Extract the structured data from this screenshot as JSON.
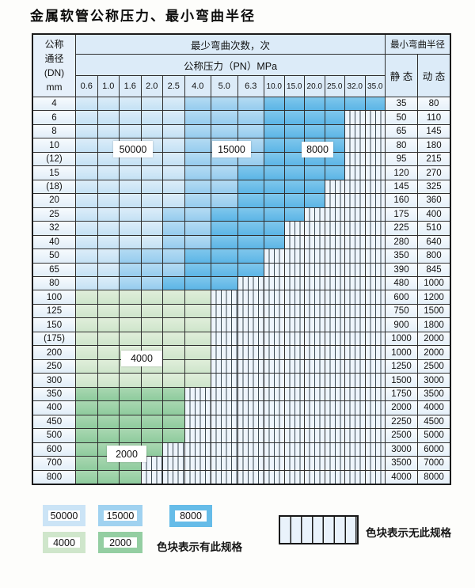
{
  "title": "金属软管公称压力、最小弯曲半径",
  "table": {
    "header": {
      "dn_lines": [
        "公称",
        "通径",
        "(DN)",
        "mm"
      ],
      "cycles_title": "最少弯曲次数，次",
      "pressure_title": "公称压力（PN）MPa",
      "pressure_columns": [
        "0.6",
        "1.0",
        "1.6",
        "2.0",
        "2.5",
        "4.0",
        "5.0",
        "6.3",
        "10.0",
        "15.0",
        "20.0",
        "25.0",
        "32.0",
        "35.0"
      ],
      "radius_title": "最小弯曲半径",
      "static_label": "静 态",
      "dynamic_label": "动 态"
    },
    "cell_codes": {
      "L": "50000次",
      "M": "15000次",
      "D": "8000次",
      "g": "4000次",
      "G": "2000次",
      "n": "无此规格"
    },
    "rows": [
      {
        "dn": "4",
        "cells": "LLLLLMMMDDDDDD",
        "static": "35",
        "dynamic": "80"
      },
      {
        "dn": "6",
        "cells": "LLLLLMMMDDDDnn",
        "static": "50",
        "dynamic": "110"
      },
      {
        "dn": "8",
        "cells": "LLLLLMMMDDDDnn",
        "static": "65",
        "dynamic": "145"
      },
      {
        "dn": "10",
        "cells": "LLLLLMMMDDDDnn",
        "static": "80",
        "dynamic": "180"
      },
      {
        "dn": "(12)",
        "cells": "LLLLLMMMDDDDnn",
        "static": "95",
        "dynamic": "215"
      },
      {
        "dn": "15",
        "cells": "LLLLLMMDDDDDnn",
        "static": "120",
        "dynamic": "270"
      },
      {
        "dn": "(18)",
        "cells": "LLLLLMMDDDDnnn",
        "static": "145",
        "dynamic": "325"
      },
      {
        "dn": "20",
        "cells": "LLLLLMMDDDDnnn",
        "static": "160",
        "dynamic": "360"
      },
      {
        "dn": "25",
        "cells": "LLLLMMDDDDnnnn",
        "static": "175",
        "dynamic": "400"
      },
      {
        "dn": "32",
        "cells": "LLLLMMDDDnnnnn",
        "static": "225",
        "dynamic": "510"
      },
      {
        "dn": "40",
        "cells": "LLLLMMDDDnnnnn",
        "static": "280",
        "dynamic": "640"
      },
      {
        "dn": "50",
        "cells": "LLMMMDDDnnnnnn",
        "static": "350",
        "dynamic": "800"
      },
      {
        "dn": "65",
        "cells": "LLMMMDDDnnnnnn",
        "static": "390",
        "dynamic": "845"
      },
      {
        "dn": "80",
        "cells": "LLMMDDDnnnnnnn",
        "static": "480",
        "dynamic": "1000"
      },
      {
        "dn": "100",
        "cells": "ggggggnnnnnnnn",
        "static": "600",
        "dynamic": "1200"
      },
      {
        "dn": "125",
        "cells": "ggggggnnnnnnnn",
        "static": "750",
        "dynamic": "1500"
      },
      {
        "dn": "150",
        "cells": "ggggggnnnnnnnn",
        "static": "900",
        "dynamic": "1800"
      },
      {
        "dn": "(175)",
        "cells": "ggggggnnnnnnnn",
        "static": "1000",
        "dynamic": "2000"
      },
      {
        "dn": "200",
        "cells": "ggggggnnnnnnnn",
        "static": "1000",
        "dynamic": "2000"
      },
      {
        "dn": "250",
        "cells": "ggggggnnnnnnnn",
        "static": "1250",
        "dynamic": "2500"
      },
      {
        "dn": "300",
        "cells": "ggggggnnnnnnnn",
        "static": "1500",
        "dynamic": "3000"
      },
      {
        "dn": "350",
        "cells": "GGGGGnnnnnnnnn",
        "static": "1750",
        "dynamic": "3500"
      },
      {
        "dn": "400",
        "cells": "GGGGGnnnnnnnnn",
        "static": "2000",
        "dynamic": "4000"
      },
      {
        "dn": "450",
        "cells": "GGGGGnnnnnnnnn",
        "static": "2250",
        "dynamic": "4500"
      },
      {
        "dn": "500",
        "cells": "GGGGGnnnnnnnnn",
        "static": "2500",
        "dynamic": "5000"
      },
      {
        "dn": "600",
        "cells": "GGGGnnnnnnnnnn",
        "static": "3000",
        "dynamic": "6000"
      },
      {
        "dn": "700",
        "cells": "GGGnnnnnnnnnnn",
        "static": "3500",
        "dynamic": "7000"
      },
      {
        "dn": "800",
        "cells": "GGGnnnnnnnnnnn",
        "static": "4000",
        "dynamic": "8000"
      }
    ],
    "overlays": [
      {
        "text": "50000"
      },
      {
        "text": "15000"
      },
      {
        "text": "8000"
      },
      {
        "text": "4000"
      },
      {
        "text": "2000"
      }
    ]
  },
  "legend": {
    "boxes": [
      {
        "value": "50000",
        "color": "#cbe4f6"
      },
      {
        "value": "15000",
        "color": "#a0d2f0"
      },
      {
        "value": "8000",
        "color": "#66bce8"
      },
      {
        "value": "4000",
        "color": "#cfe6cb"
      },
      {
        "value": "2000",
        "color": "#94cea2"
      }
    ],
    "available_label": "色块表示有此规格",
    "unavailable_label": "色块表示无此规格"
  },
  "colors": {
    "cycle_50000": "#cde5f6",
    "cycle_15000": "#a5d4f0",
    "cycle_8000": "#6cbee9",
    "cycle_4000": "#d6e9d2",
    "cycle_2000": "#9cd1a8",
    "header_bg": "#dcebf8",
    "grid_line": "#2f2f2f"
  }
}
